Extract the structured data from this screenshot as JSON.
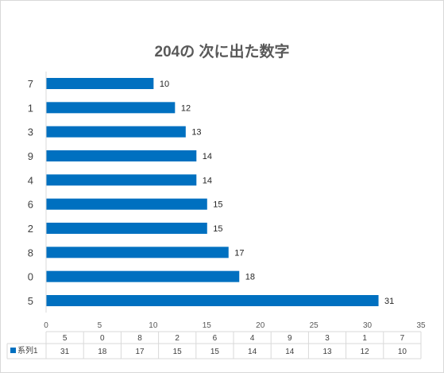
{
  "chart_data": {
    "type": "bar",
    "orientation": "horizontal",
    "title": "204の 次に出た数字",
    "categories": [
      "5",
      "0",
      "8",
      "2",
      "6",
      "4",
      "9",
      "3",
      "1",
      "7"
    ],
    "series": [
      {
        "name": "系列1",
        "values": [
          31,
          18,
          17,
          15,
          15,
          14,
          14,
          13,
          12,
          10
        ],
        "color": "#0070c0"
      }
    ],
    "xlim": [
      0,
      35
    ],
    "x_ticks": [
      0,
      5,
      10,
      15,
      20,
      25,
      30,
      35
    ],
    "data_labels": true,
    "data_table": true,
    "legend": "data-table"
  }
}
